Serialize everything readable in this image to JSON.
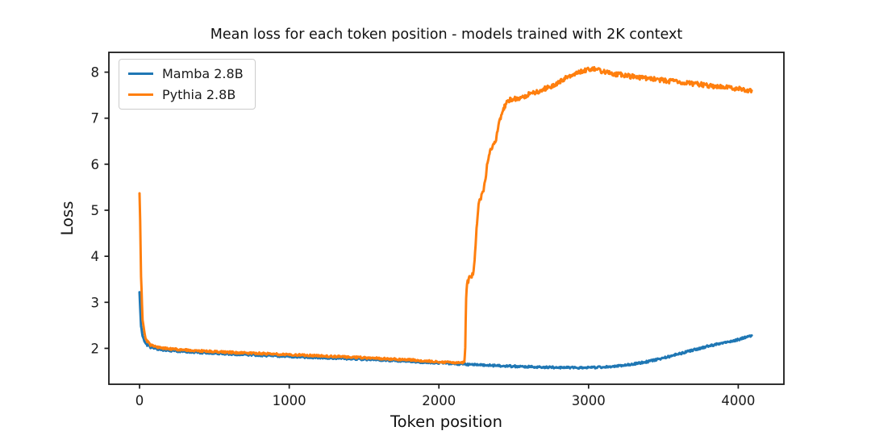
{
  "chart_data": {
    "type": "line",
    "title": "Mean loss for each token position - models trained with 2K context",
    "xlabel": "Token position",
    "ylabel": "Loss",
    "xlim": [
      -205,
      4305
    ],
    "ylim": [
      1.22,
      8.43
    ],
    "x_ticks": [
      0,
      1000,
      2000,
      3000,
      4000
    ],
    "y_ticks": [
      2,
      3,
      4,
      5,
      6,
      7,
      8
    ],
    "grid": false,
    "background": "#ffffff",
    "axis_color": "#1a1a1a",
    "legend": {
      "position": "upper left",
      "border_color": "#cccccc",
      "background": "#ffffff"
    },
    "series": [
      {
        "name": "Mamba 2.8B",
        "color": "#1f77b4",
        "points": [
          [
            0,
            3.25
          ],
          [
            4,
            2.9
          ],
          [
            10,
            2.5
          ],
          [
            20,
            2.25
          ],
          [
            40,
            2.1
          ],
          [
            70,
            2.03
          ],
          [
            100,
            2.0
          ],
          [
            150,
            1.97
          ],
          [
            200,
            1.955
          ],
          [
            300,
            1.93
          ],
          [
            400,
            1.91
          ],
          [
            500,
            1.895
          ],
          [
            600,
            1.88
          ],
          [
            700,
            1.865
          ],
          [
            800,
            1.85
          ],
          [
            900,
            1.84
          ],
          [
            1000,
            1.825
          ],
          [
            1100,
            1.81
          ],
          [
            1200,
            1.8
          ],
          [
            1300,
            1.79
          ],
          [
            1400,
            1.775
          ],
          [
            1500,
            1.76
          ],
          [
            1600,
            1.75
          ],
          [
            1700,
            1.735
          ],
          [
            1800,
            1.72
          ],
          [
            1900,
            1.7
          ],
          [
            2000,
            1.685
          ],
          [
            2100,
            1.665
          ],
          [
            2200,
            1.65
          ],
          [
            2300,
            1.635
          ],
          [
            2400,
            1.62
          ],
          [
            2500,
            1.61
          ],
          [
            2600,
            1.6
          ],
          [
            2700,
            1.59
          ],
          [
            2800,
            1.585
          ],
          [
            2900,
            1.58
          ],
          [
            3000,
            1.58
          ],
          [
            3100,
            1.595
          ],
          [
            3200,
            1.62
          ],
          [
            3300,
            1.66
          ],
          [
            3400,
            1.715
          ],
          [
            3500,
            1.79
          ],
          [
            3600,
            1.875
          ],
          [
            3700,
            1.965
          ],
          [
            3800,
            2.05
          ],
          [
            3900,
            2.12
          ],
          [
            4000,
            2.19
          ],
          [
            4090,
            2.28
          ]
        ]
      },
      {
        "name": "Pythia 2.8B",
        "color": "#ff7f0e",
        "points": [
          [
            0,
            5.4
          ],
          [
            4,
            4.8
          ],
          [
            10,
            3.6
          ],
          [
            20,
            2.6
          ],
          [
            40,
            2.2
          ],
          [
            70,
            2.08
          ],
          [
            100,
            2.04
          ],
          [
            150,
            2.01
          ],
          [
            200,
            1.99
          ],
          [
            300,
            1.965
          ],
          [
            400,
            1.945
          ],
          [
            500,
            1.93
          ],
          [
            600,
            1.915
          ],
          [
            700,
            1.9
          ],
          [
            800,
            1.89
          ],
          [
            900,
            1.875
          ],
          [
            1000,
            1.865
          ],
          [
            1100,
            1.85
          ],
          [
            1200,
            1.84
          ],
          [
            1300,
            1.825
          ],
          [
            1400,
            1.81
          ],
          [
            1500,
            1.795
          ],
          [
            1600,
            1.78
          ],
          [
            1700,
            1.765
          ],
          [
            1800,
            1.75
          ],
          [
            1900,
            1.73
          ],
          [
            2000,
            1.71
          ],
          [
            2050,
            1.7
          ],
          [
            2100,
            1.69
          ],
          [
            2150,
            1.68
          ],
          [
            2170,
            1.7
          ],
          [
            2176,
            2.0
          ],
          [
            2182,
            3.1
          ],
          [
            2188,
            3.42
          ],
          [
            2200,
            3.5
          ],
          [
            2215,
            3.57
          ],
          [
            2228,
            3.62
          ],
          [
            2235,
            3.75
          ],
          [
            2245,
            4.2
          ],
          [
            2255,
            4.75
          ],
          [
            2265,
            5.1
          ],
          [
            2272,
            5.22
          ],
          [
            2285,
            5.3
          ],
          [
            2295,
            5.38
          ],
          [
            2305,
            5.55
          ],
          [
            2315,
            5.8
          ],
          [
            2325,
            6.05
          ],
          [
            2335,
            6.22
          ],
          [
            2345,
            6.3
          ],
          [
            2355,
            6.38
          ],
          [
            2365,
            6.42
          ],
          [
            2375,
            6.45
          ],
          [
            2385,
            6.6
          ],
          [
            2395,
            6.8
          ],
          [
            2405,
            6.95
          ],
          [
            2420,
            7.1
          ],
          [
            2435,
            7.22
          ],
          [
            2450,
            7.32
          ],
          [
            2465,
            7.38
          ],
          [
            2480,
            7.42
          ],
          [
            2500,
            7.4
          ],
          [
            2520,
            7.44
          ],
          [
            2540,
            7.42
          ],
          [
            2560,
            7.46
          ],
          [
            2580,
            7.48
          ],
          [
            2600,
            7.52
          ],
          [
            2650,
            7.57
          ],
          [
            2700,
            7.63
          ],
          [
            2750,
            7.7
          ],
          [
            2800,
            7.78
          ],
          [
            2850,
            7.88
          ],
          [
            2900,
            7.96
          ],
          [
            2950,
            8.02
          ],
          [
            3000,
            8.06
          ],
          [
            3030,
            8.08
          ],
          [
            3060,
            8.05
          ],
          [
            3100,
            8.01
          ],
          [
            3150,
            7.98
          ],
          [
            3200,
            7.95
          ],
          [
            3250,
            7.92
          ],
          [
            3300,
            7.9
          ],
          [
            3350,
            7.88
          ],
          [
            3400,
            7.86
          ],
          [
            3450,
            7.84
          ],
          [
            3500,
            7.82
          ],
          [
            3550,
            7.8
          ],
          [
            3600,
            7.79
          ],
          [
            3650,
            7.77
          ],
          [
            3700,
            7.75
          ],
          [
            3750,
            7.73
          ],
          [
            3800,
            7.71
          ],
          [
            3850,
            7.69
          ],
          [
            3900,
            7.67
          ],
          [
            3950,
            7.66
          ],
          [
            4000,
            7.64
          ],
          [
            4050,
            7.62
          ],
          [
            4090,
            7.6
          ]
        ]
      }
    ]
  }
}
